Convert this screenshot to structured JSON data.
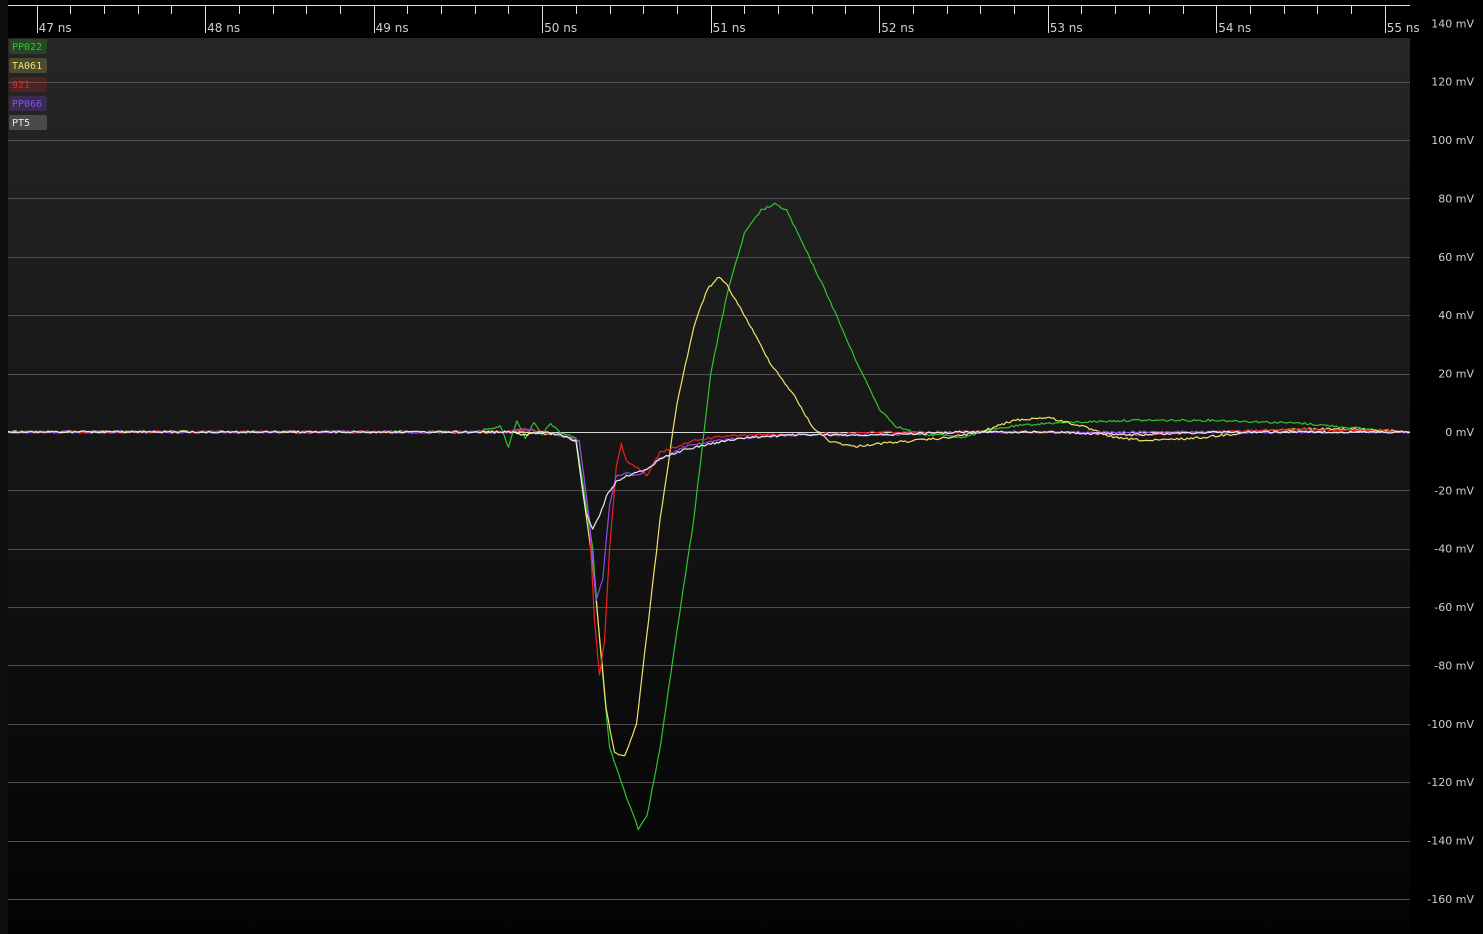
{
  "chart_data": {
    "type": "line",
    "x_unit": "ns",
    "y_unit": "mV",
    "xlim": [
      46.83,
      55.15
    ],
    "ylim": [
      -172,
      148
    ],
    "x_ticks": [
      47,
      48,
      49,
      50,
      51,
      52,
      53,
      54,
      55
    ],
    "x_tick_labels": [
      "47 ns",
      "48 ns",
      "49 ns",
      "50 ns",
      "51 ns",
      "52 ns",
      "53 ns",
      "54 ns",
      "55 ns"
    ],
    "y_ticks": [
      140,
      120,
      100,
      80,
      60,
      40,
      20,
      0,
      -20,
      -40,
      -60,
      -80,
      -100,
      -120,
      -140,
      -160
    ],
    "y_tick_labels": [
      "140 mV",
      "120 mV",
      "100 mV",
      "80 mV",
      "60 mV",
      "40 mV",
      "20 mV",
      "0 mV",
      "-20 mV",
      "-40 mV",
      "-60 mV",
      "-80 mV",
      "-100 mV",
      "-120 mV",
      "-140 mV",
      "-160 mV"
    ],
    "grid": true,
    "legend_position": "top-left",
    "series": [
      {
        "name": "PP022",
        "color": "#2fc42f",
        "points": [
          [
            46.83,
            0
          ],
          [
            49.6,
            0
          ],
          [
            49.75,
            2
          ],
          [
            49.8,
            -5
          ],
          [
            49.85,
            4
          ],
          [
            49.9,
            -2
          ],
          [
            49.95,
            3
          ],
          [
            50.0,
            -1
          ],
          [
            50.05,
            3
          ],
          [
            50.1,
            0
          ],
          [
            50.2,
            -2
          ],
          [
            50.3,
            -40
          ],
          [
            50.35,
            -78
          ],
          [
            50.4,
            -108
          ],
          [
            50.5,
            -125
          ],
          [
            50.57,
            -136
          ],
          [
            50.62,
            -132
          ],
          [
            50.7,
            -108
          ],
          [
            50.8,
            -68
          ],
          [
            50.9,
            -30
          ],
          [
            51.0,
            20
          ],
          [
            51.1,
            48
          ],
          [
            51.2,
            68
          ],
          [
            51.3,
            76
          ],
          [
            51.38,
            78
          ],
          [
            51.45,
            76
          ],
          [
            51.55,
            64
          ],
          [
            51.7,
            46
          ],
          [
            51.85,
            26
          ],
          [
            52.0,
            8
          ],
          [
            52.1,
            2
          ],
          [
            52.25,
            -1
          ],
          [
            52.4,
            -1
          ],
          [
            52.5,
            -2
          ],
          [
            52.6,
            0
          ],
          [
            52.8,
            2
          ],
          [
            53.0,
            3
          ],
          [
            53.5,
            4
          ],
          [
            54.0,
            4
          ],
          [
            54.5,
            3
          ],
          [
            54.9,
            1
          ],
          [
            55.15,
            0
          ]
        ]
      },
      {
        "name": "TA061",
        "color": "#f0e26a",
        "points": [
          [
            46.83,
            0
          ],
          [
            49.9,
            0
          ],
          [
            50.1,
            -1
          ],
          [
            50.2,
            -3
          ],
          [
            50.3,
            -45
          ],
          [
            50.38,
            -95
          ],
          [
            50.43,
            -110
          ],
          [
            50.49,
            -111
          ],
          [
            50.56,
            -100
          ],
          [
            50.62,
            -70
          ],
          [
            50.7,
            -30
          ],
          [
            50.8,
            10
          ],
          [
            50.9,
            36
          ],
          [
            50.98,
            49
          ],
          [
            51.05,
            53
          ],
          [
            51.1,
            50
          ],
          [
            51.2,
            40
          ],
          [
            51.35,
            24
          ],
          [
            51.5,
            12
          ],
          [
            51.6,
            2
          ],
          [
            51.7,
            -3
          ],
          [
            51.85,
            -5
          ],
          [
            52.0,
            -4
          ],
          [
            52.2,
            -3
          ],
          [
            52.4,
            -2
          ],
          [
            52.6,
            0
          ],
          [
            52.8,
            4
          ],
          [
            53.0,
            5
          ],
          [
            53.2,
            2
          ],
          [
            53.4,
            -2
          ],
          [
            53.6,
            -3
          ],
          [
            53.9,
            -2
          ],
          [
            54.2,
            0
          ],
          [
            54.5,
            1
          ],
          [
            54.8,
            1
          ],
          [
            55.15,
            0
          ]
        ]
      },
      {
        "name": "921",
        "color": "#ee2222",
        "points": [
          [
            46.83,
            0
          ],
          [
            49.8,
            0
          ],
          [
            49.9,
            1
          ],
          [
            50.0,
            0
          ],
          [
            50.1,
            -1
          ],
          [
            50.22,
            -3
          ],
          [
            50.28,
            -30
          ],
          [
            50.31,
            -64
          ],
          [
            50.34,
            -83
          ],
          [
            50.37,
            -72
          ],
          [
            50.4,
            -40
          ],
          [
            50.44,
            -12
          ],
          [
            50.47,
            -4
          ],
          [
            50.5,
            -10
          ],
          [
            50.56,
            -12
          ],
          [
            50.62,
            -15
          ],
          [
            50.7,
            -7
          ],
          [
            50.8,
            -5
          ],
          [
            50.9,
            -3
          ],
          [
            51.0,
            -2
          ],
          [
            51.2,
            -1
          ],
          [
            51.5,
            -1
          ],
          [
            52.0,
            0
          ],
          [
            52.5,
            0
          ],
          [
            53.0,
            0
          ],
          [
            53.5,
            -1
          ],
          [
            54.0,
            0
          ],
          [
            54.5,
            1
          ],
          [
            55.15,
            0
          ]
        ]
      },
      {
        "name": "PP066",
        "color": "#8a4cf0",
        "points": [
          [
            46.83,
            0
          ],
          [
            49.8,
            0
          ],
          [
            49.9,
            1
          ],
          [
            50.0,
            0
          ],
          [
            50.1,
            -1
          ],
          [
            50.22,
            -3
          ],
          [
            50.28,
            -30
          ],
          [
            50.32,
            -58
          ],
          [
            50.36,
            -50
          ],
          [
            50.4,
            -25
          ],
          [
            50.44,
            -15
          ],
          [
            50.5,
            -14
          ],
          [
            50.56,
            -15
          ],
          [
            50.62,
            -13
          ],
          [
            50.7,
            -9
          ],
          [
            50.85,
            -5
          ],
          [
            51.0,
            -3
          ],
          [
            51.2,
            -2
          ],
          [
            51.5,
            -1
          ],
          [
            52.0,
            -1
          ],
          [
            52.5,
            0
          ],
          [
            53.0,
            0
          ],
          [
            53.5,
            0
          ],
          [
            54.0,
            0
          ],
          [
            54.5,
            0
          ],
          [
            55.15,
            0
          ]
        ]
      },
      {
        "name": "PT5",
        "color": "#e8e8e8",
        "points": [
          [
            46.83,
            0
          ],
          [
            49.8,
            0
          ],
          [
            49.9,
            -1
          ],
          [
            50.0,
            0
          ],
          [
            50.1,
            -1
          ],
          [
            50.2,
            -3
          ],
          [
            50.26,
            -28
          ],
          [
            50.3,
            -33
          ],
          [
            50.34,
            -29
          ],
          [
            50.38,
            -22
          ],
          [
            50.44,
            -17
          ],
          [
            50.5,
            -15
          ],
          [
            50.56,
            -14
          ],
          [
            50.62,
            -13
          ],
          [
            50.7,
            -9
          ],
          [
            50.85,
            -6
          ],
          [
            51.0,
            -4
          ],
          [
            51.2,
            -2
          ],
          [
            51.5,
            -1
          ],
          [
            52.0,
            -1
          ],
          [
            52.5,
            0
          ],
          [
            53.0,
            0
          ],
          [
            53.5,
            -1
          ],
          [
            54.0,
            0
          ],
          [
            54.5,
            0
          ],
          [
            55.15,
            0
          ]
        ]
      }
    ]
  }
}
